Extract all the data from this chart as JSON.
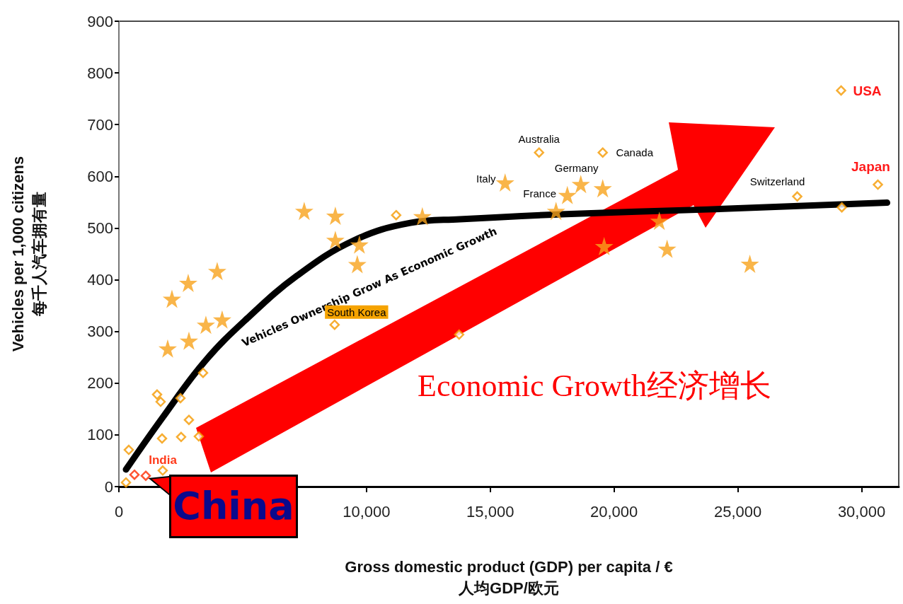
{
  "chart_data": {
    "type": "scatter",
    "xlabel": "Gross domestic product (GDP) per capita / €\n人均GDP/欧元",
    "ylabel": "Vehicles per 1,000 citizens\n每千人汽车拥有量",
    "xlim": [
      0,
      31500
    ],
    "xticks": [
      0,
      {
        "value": 5000,
        "label": null
      },
      {
        "value": 10000,
        "label": "10,000"
      },
      {
        "value": 15000,
        "label": "15,000"
      },
      {
        "value": 20000,
        "label": "20,000"
      },
      {
        "value": 25000,
        "label": "25,000"
      },
      {
        "value": 30000,
        "label": "30,000"
      }
    ],
    "ylim": [
      0,
      900
    ],
    "yticks": [
      0,
      100,
      200,
      300,
      400,
      500,
      600,
      700,
      800,
      900
    ],
    "grid": false,
    "series": [
      {
        "marker": "star",
        "color": "#f7a21b",
        "x": [
          2143,
          2800,
          1971,
          2829,
          3514,
          3971,
          4171,
          7486,
          8743,
          8743,
          9714,
          9629,
          12257,
          15600,
          18114,
          18657,
          19543,
          17657,
          19600,
          21829,
          22143,
          25486
        ],
        "values": [
          363,
          394,
          267,
          282,
          313,
          417,
          323,
          533,
          524,
          477,
          468,
          430,
          523,
          588,
          564,
          585,
          577,
          533,
          465,
          514,
          460,
          431
        ]
      },
      {
        "marker": "diamond",
        "color": "#f59a00",
        "x": [
          286,
          400,
          1771,
          1543,
          1686,
          2486,
          1743,
          2514,
          2829,
          3400,
          3229,
          8714,
          11200,
          13743,
          16971,
          19543,
          27400,
          29200,
          30657,
          29171
        ],
        "values": [
          8,
          71,
          31,
          178,
          164,
          171,
          93,
          96,
          129,
          220,
          97,
          313,
          525,
          294,
          646,
          646,
          561,
          540,
          584,
          766
        ]
      },
      {
        "marker": "diamond",
        "color": "#ff2a00",
        "x": [
          629,
          1086
        ],
        "values": [
          23,
          21
        ]
      },
      {
        "type": "line",
        "marker": "none",
        "line_style": "solid",
        "color": "#000000",
        "x": [
          286,
          1771,
          3486,
          5200,
          7200,
          9486,
          11771,
          13771,
          18057,
          23771,
          31029
        ],
        "values": [
          33,
          134,
          243,
          326,
          408,
          476,
          510,
          517,
          527,
          536,
          549
        ]
      }
    ],
    "annotations": [
      "Vehicles Ownership Grow As Economic Growth",
      "Economic Growth经济增长",
      {
        "text": "China",
        "x": 1086,
        "y": 21
      },
      {
        "text": "India",
        "x": 629,
        "y": 23
      },
      {
        "text": "South Korea",
        "x": 8714,
        "y": 313
      },
      {
        "text": "Italy",
        "x": 15600,
        "y": 588
      },
      {
        "text": "Australia",
        "x": 16971,
        "y": 646
      },
      {
        "text": "Germany",
        "x": 18657,
        "y": 585
      },
      {
        "text": "Canada",
        "x": 19543,
        "y": 646
      },
      {
        "text": "France",
        "x": 18114,
        "y": 564
      },
      {
        "text": "Switzerland",
        "x": 27400,
        "y": 561
      },
      {
        "text": "USA",
        "x": 29171,
        "y": 766
      },
      {
        "text": "Japan",
        "x": 30657,
        "y": 584
      }
    ]
  }
}
